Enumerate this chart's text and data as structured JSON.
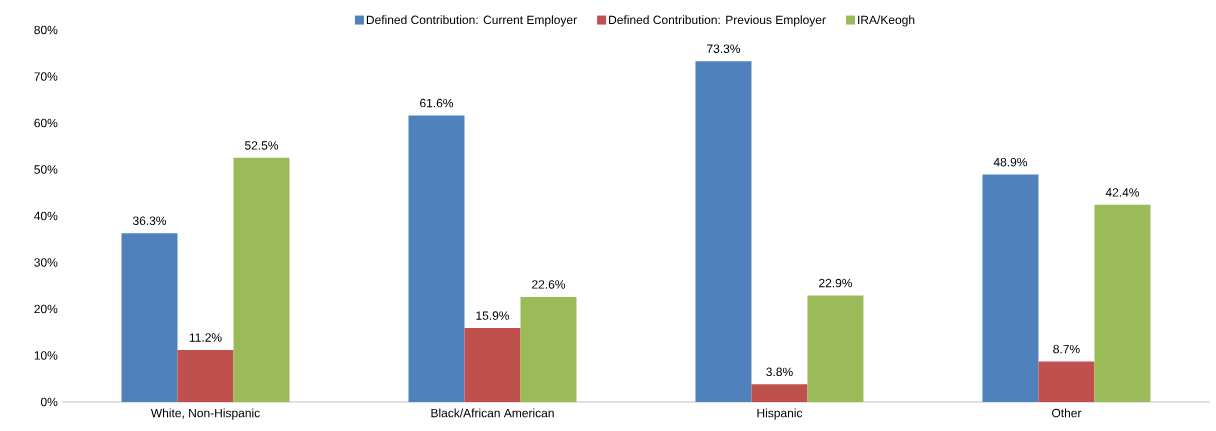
{
  "chart_data": {
    "type": "bar",
    "categories": [
      "White, Non-Hispanic",
      "Black/African American",
      "Hispanic",
      "Other"
    ],
    "series": [
      {
        "name": "Defined Contribution: Current Employer",
        "color": "#4f81bd",
        "values": [
          36.3,
          61.6,
          73.3,
          48.9
        ],
        "value_labels": [
          "36.3%",
          "61.6%",
          "73.3%",
          "48.9%"
        ]
      },
      {
        "name": "Defined Contribution: Previous Employer",
        "color": "#c0504d",
        "values": [
          11.2,
          15.9,
          3.8,
          8.7
        ],
        "value_labels": [
          "11.2%",
          "15.9%",
          "3.8%",
          "8.7%"
        ]
      },
      {
        "name": "IRA/Keogh",
        "color": "#9bbb59",
        "values": [
          52.5,
          22.6,
          22.9,
          42.4
        ],
        "value_labels": [
          "52.5%",
          "22.6%",
          "22.9%",
          "42.4%"
        ]
      }
    ],
    "ylim": [
      0,
      80
    ],
    "yticks": [
      {
        "value": 0,
        "label": "0%"
      },
      {
        "value": 10,
        "label": "10%"
      },
      {
        "value": 20,
        "label": "20%"
      },
      {
        "value": 30,
        "label": "30%"
      },
      {
        "value": 40,
        "label": "40%"
      },
      {
        "value": 50,
        "label": "50%"
      },
      {
        "value": 60,
        "label": "60%"
      },
      {
        "value": 70,
        "label": "70%"
      },
      {
        "value": 80,
        "label": "80%"
      }
    ],
    "grid": false,
    "legend": "top"
  }
}
